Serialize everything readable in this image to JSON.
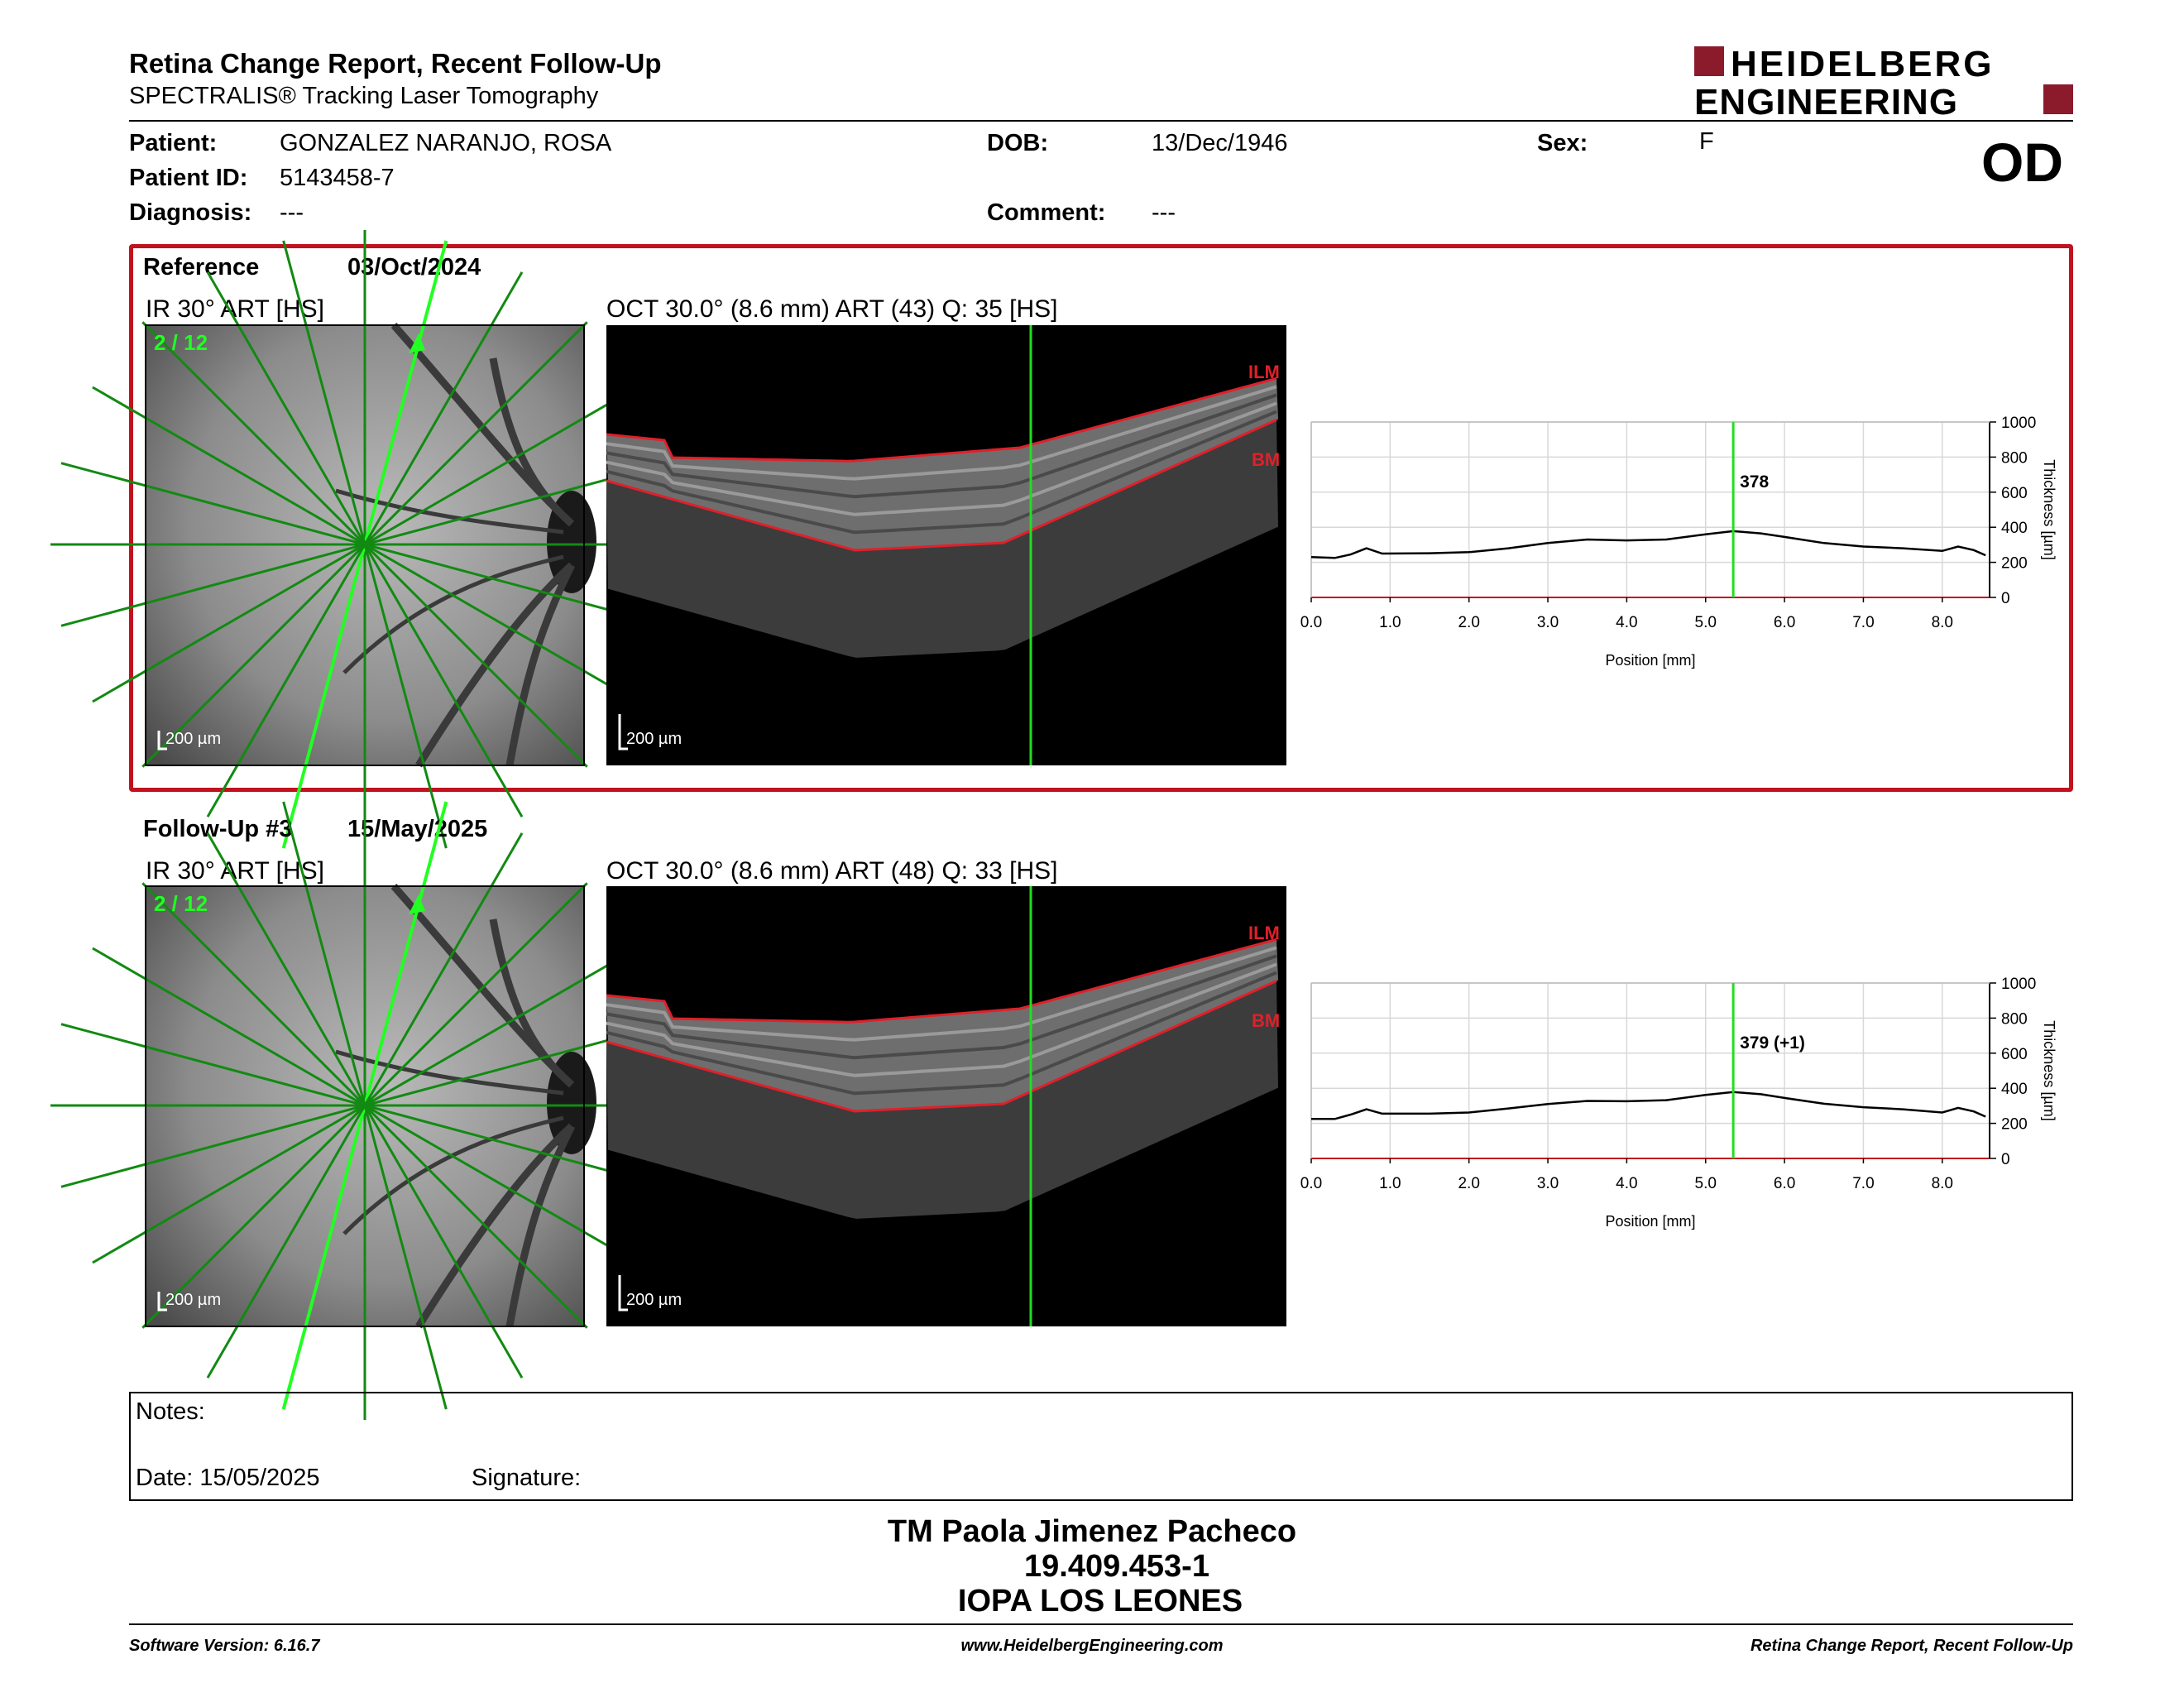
{
  "header": {
    "title": "Retina Change Report, Recent Follow-Up",
    "subtitle": "SPECTRALIS® Tracking Laser Tomography",
    "logo_line1": "HEIDELBERG",
    "logo_line2": "ENGINEERING",
    "brand_color": "#8b1a2b"
  },
  "patient": {
    "patient_label": "Patient:",
    "patient_value": "GONZALEZ NARANJO, ROSA",
    "id_label": "Patient ID:",
    "id_value": "5143458-7",
    "diagnosis_label": "Diagnosis:",
    "diagnosis_value": "---",
    "dob_label": "DOB:",
    "dob_value": "13/Dec/1946",
    "comment_label": "Comment:",
    "comment_value": "---",
    "sex_label": "Sex:",
    "sex_value": "F",
    "eye": "OD"
  },
  "reference": {
    "label": "Reference",
    "date": "03/Oct/2024",
    "ir_label": "IR 30° ART [HS]",
    "oct_label": "OCT 30.0° (8.6 mm) ART (43) Q: 35 [HS]",
    "scan_index": "2 / 12",
    "scale": "200 µm",
    "ilm": "ILM",
    "bm": "BM"
  },
  "followup": {
    "label": "Follow-Up #3",
    "date": "15/May/2025",
    "ir_label": "IR 30° ART [HS]",
    "oct_label": "OCT 30.0° (8.6 mm) ART (48) Q: 33 [HS]",
    "scan_index": "2 / 12",
    "scale": "200 µm",
    "ilm": "ILM",
    "bm": "BM"
  },
  "chart_data": [
    {
      "type": "line",
      "xlabel": "Position [mm]",
      "ylabel": "Thickness [µm]",
      "xlim": [
        0,
        8.6
      ],
      "ylim": [
        0,
        1000
      ],
      "xticks": [
        "0.0",
        "1.0",
        "2.0",
        "3.0",
        "4.0",
        "5.0",
        "6.0",
        "7.0",
        "8.0"
      ],
      "yticks": [
        "0",
        "200",
        "400",
        "600",
        "800",
        "1000"
      ],
      "grid": true,
      "marker_x": 5.35,
      "marker_label": "378",
      "x": [
        0,
        0.3,
        0.5,
        0.7,
        0.9,
        1.5,
        2.0,
        2.5,
        3.0,
        3.5,
        4.0,
        4.5,
        5.0,
        5.35,
        5.7,
        6.0,
        6.5,
        7.0,
        7.5,
        8.0,
        8.2,
        8.4,
        8.55
      ],
      "y": [
        230,
        225,
        245,
        280,
        250,
        252,
        258,
        280,
        310,
        330,
        325,
        330,
        360,
        378,
        365,
        345,
        310,
        290,
        280,
        265,
        290,
        270,
        240
      ]
    },
    {
      "type": "line",
      "xlabel": "Position [mm]",
      "ylabel": "Thickness [µm]",
      "xlim": [
        0,
        8.6
      ],
      "ylim": [
        0,
        1000
      ],
      "xticks": [
        "0.0",
        "1.0",
        "2.0",
        "3.0",
        "4.0",
        "5.0",
        "6.0",
        "7.0",
        "8.0"
      ],
      "yticks": [
        "0",
        "200",
        "400",
        "600",
        "800",
        "1000"
      ],
      "grid": true,
      "marker_x": 5.35,
      "marker_label": "379 (+1)",
      "x": [
        0,
        0.3,
        0.5,
        0.7,
        0.9,
        1.5,
        2.0,
        2.5,
        3.0,
        3.5,
        4.0,
        4.5,
        5.0,
        5.35,
        5.7,
        6.0,
        6.5,
        7.0,
        7.5,
        8.0,
        8.2,
        8.4,
        8.55
      ],
      "y": [
        225,
        225,
        250,
        280,
        255,
        255,
        262,
        285,
        310,
        328,
        326,
        332,
        362,
        379,
        366,
        345,
        312,
        292,
        280,
        262,
        288,
        268,
        238
      ]
    }
  ],
  "notes": {
    "notes_label": "Notes:",
    "date_label": "Date: 15/05/2025",
    "signature_label": "Signature:"
  },
  "signer": {
    "name": "TM Paola Jimenez Pacheco",
    "id": "19.409.453-1",
    "org": "IOPA LOS LEONES"
  },
  "footer": {
    "software": "Software Version: 6.16.7",
    "website": "www.HeidelbergEngineering.com",
    "report": "Retina Change Report, Recent Follow-Up"
  }
}
